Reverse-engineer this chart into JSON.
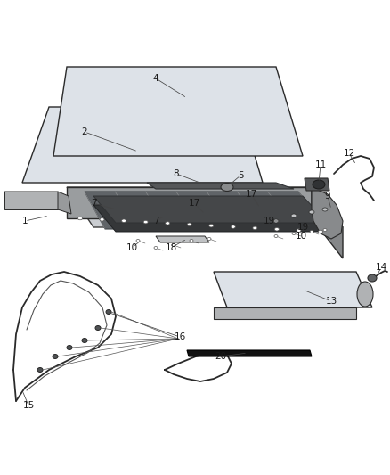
{
  "bg_color": "#ffffff",
  "fig_width": 4.38,
  "fig_height": 5.33,
  "dpi": 100,
  "line_color": "#2a2a2a",
  "fill_light": "#e8eaec",
  "fill_mid": "#c8cacc",
  "fill_dark": "#909090"
}
